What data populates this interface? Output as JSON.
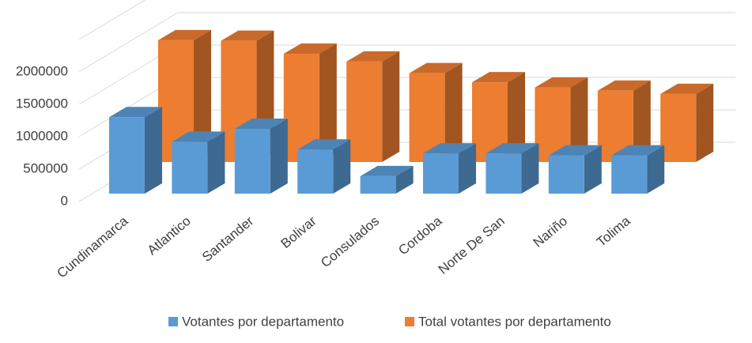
{
  "chart_data": {
    "type": "bar3d",
    "categories": [
      "Cundinamarca",
      "Atlantico",
      "Santander",
      "Bolivar",
      "Consulados",
      "Cordoba",
      "Norte De San",
      "Nariño",
      "Tolima"
    ],
    "series": [
      {
        "name": "Votantes por departamento",
        "color": "#5b9bd5",
        "values": [
          1180000,
          800000,
          1000000,
          680000,
          270000,
          620000,
          620000,
          590000,
          590000
        ]
      },
      {
        "name": "Total votantes por departamento",
        "color": "#ed7d31",
        "values": [
          1880000,
          1870000,
          1670000,
          1550000,
          1370000,
          1230000,
          1150000,
          1100000,
          1050000
        ]
      }
    ],
    "ylim": [
      0,
      2500000
    ],
    "yticks": [
      0,
      500000,
      1000000,
      1500000,
      2000000
    ],
    "grid": true,
    "legend": "bottom"
  }
}
